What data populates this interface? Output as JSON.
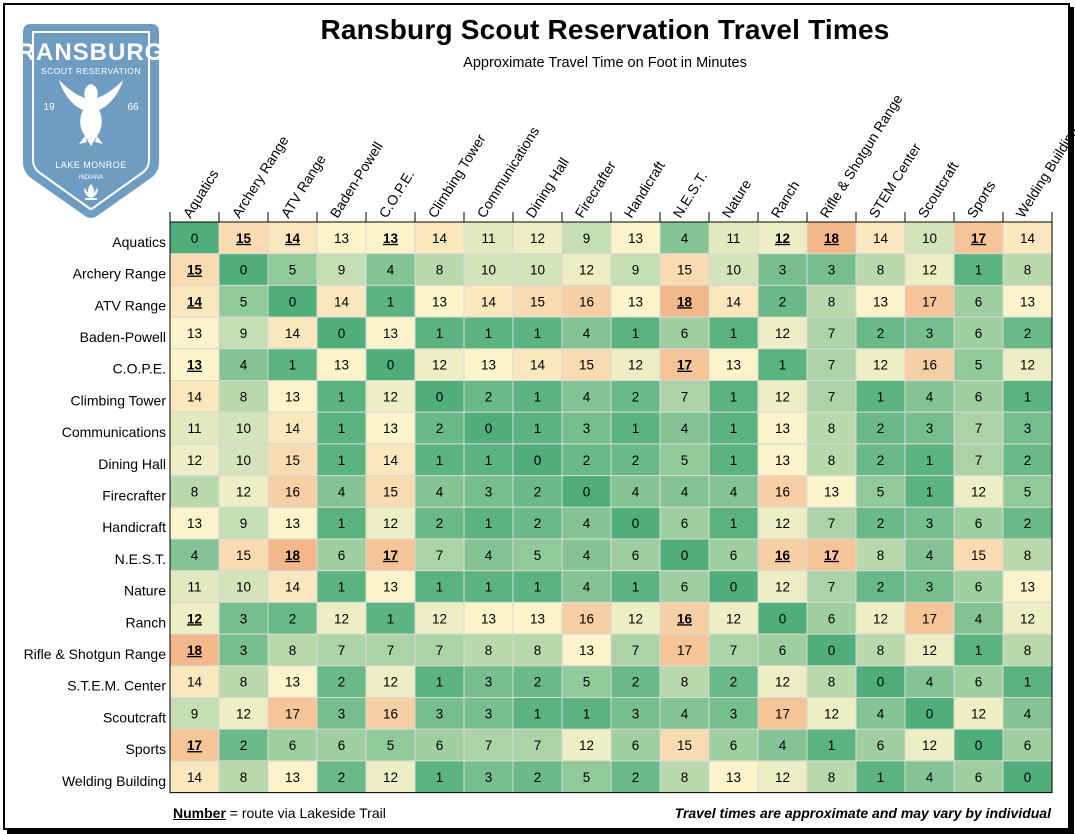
{
  "logo": {
    "name": "RANSBURG",
    "sub": "SCOUT RESERVATION",
    "year_left": "19",
    "year_right": "66",
    "lake": "LAKE MONROE",
    "state": "INDIANA",
    "color": "#6f9dc1"
  },
  "colors": {
    "low": "#4fae7c",
    "mid": "#fbf3cb",
    "high": "#f3b88a",
    "grid": "#d8d8d8",
    "frame": "#000000"
  },
  "footer": {
    "legend_word": "Number",
    "legend_text": " = route via Lakeside Trail",
    "note": "Travel times are approximate and may vary by individual"
  },
  "chart_data": {
    "type": "heatmap",
    "title": "Ransburg Scout Reservation Travel Times",
    "subtitle": "Approximate Travel Time on Foot in Minutes",
    "value_range": [
      0,
      18
    ],
    "rows": [
      "Aquatics",
      "Archery Range",
      "ATV Range",
      "Baden-Powell",
      "C.O.P.E.",
      "Climbing Tower",
      "Communications",
      "Dining Hall",
      "Firecrafter",
      "Handicraft",
      "N.E.S.T.",
      "Nature",
      "Ranch",
      "Rifle & Shotgun Range",
      "S.T.E.M. Center",
      "Scoutcraft",
      "Sports",
      "Welding Building"
    ],
    "columns": [
      "Aquatics",
      "Archery Range",
      "ATV Range",
      "Baden-Powell",
      "C.O.P.E.",
      "Climbing Tower",
      "Communications",
      "Dining Hall",
      "Firecrafter",
      "Handicraft",
      "N.E.S.T.",
      "Nature",
      "Ranch",
      "Rifle & Shotgun Range",
      "STEM Center",
      "Scoutcraft",
      "Sports",
      "Welding Building"
    ],
    "values": [
      [
        0,
        15,
        14,
        13,
        13,
        14,
        11,
        12,
        9,
        13,
        4,
        11,
        12,
        18,
        14,
        10,
        17,
        14
      ],
      [
        15,
        0,
        5,
        9,
        4,
        8,
        10,
        10,
        12,
        9,
        15,
        10,
        3,
        3,
        8,
        12,
        1,
        8
      ],
      [
        14,
        5,
        0,
        14,
        1,
        13,
        14,
        15,
        16,
        13,
        18,
        14,
        2,
        8,
        13,
        17,
        6,
        13
      ],
      [
        13,
        9,
        14,
        0,
        13,
        1,
        1,
        1,
        4,
        1,
        6,
        1,
        12,
        7,
        2,
        3,
        6,
        2
      ],
      [
        13,
        4,
        1,
        13,
        0,
        12,
        13,
        14,
        15,
        12,
        17,
        13,
        1,
        7,
        12,
        16,
        5,
        12
      ],
      [
        14,
        8,
        13,
        1,
        12,
        0,
        2,
        1,
        4,
        2,
        7,
        1,
        12,
        7,
        1,
        4,
        6,
        1
      ],
      [
        11,
        10,
        14,
        1,
        13,
        2,
        0,
        1,
        3,
        1,
        4,
        1,
        13,
        8,
        2,
        3,
        7,
        3
      ],
      [
        12,
        10,
        15,
        1,
        14,
        1,
        1,
        0,
        2,
        2,
        5,
        1,
        13,
        8,
        2,
        1,
        7,
        2
      ],
      [
        8,
        12,
        16,
        4,
        15,
        4,
        3,
        2,
        0,
        4,
        4,
        4,
        16,
        13,
        5,
        1,
        12,
        5
      ],
      [
        13,
        9,
        13,
        1,
        12,
        2,
        1,
        2,
        4,
        0,
        6,
        1,
        12,
        7,
        2,
        3,
        6,
        2
      ],
      [
        4,
        15,
        18,
        6,
        17,
        7,
        4,
        5,
        4,
        6,
        0,
        6,
        16,
        17,
        8,
        4,
        15,
        8
      ],
      [
        11,
        10,
        14,
        1,
        13,
        1,
        1,
        1,
        4,
        1,
        6,
        0,
        12,
        7,
        2,
        3,
        6,
        13
      ],
      [
        12,
        3,
        2,
        12,
        1,
        12,
        13,
        13,
        16,
        12,
        16,
        12,
        0,
        6,
        12,
        17,
        4,
        12
      ],
      [
        18,
        3,
        8,
        7,
        7,
        7,
        8,
        8,
        13,
        7,
        17,
        7,
        6,
        0,
        8,
        12,
        1,
        8
      ],
      [
        14,
        8,
        13,
        2,
        12,
        1,
        3,
        2,
        5,
        2,
        8,
        2,
        12,
        8,
        0,
        4,
        6,
        1
      ],
      [
        9,
        12,
        17,
        3,
        16,
        3,
        3,
        1,
        1,
        3,
        4,
        3,
        17,
        12,
        4,
        0,
        12,
        4
      ],
      [
        17,
        2,
        6,
        6,
        5,
        6,
        7,
        7,
        12,
        6,
        15,
        6,
        4,
        1,
        6,
        12,
        0,
        6
      ],
      [
        14,
        8,
        13,
        2,
        12,
        1,
        3,
        2,
        5,
        2,
        8,
        13,
        12,
        8,
        1,
        4,
        6,
        0
      ]
    ],
    "lakeside_trail_routes": [
      [
        0,
        1
      ],
      [
        0,
        2
      ],
      [
        0,
        4
      ],
      [
        0,
        12
      ],
      [
        0,
        13
      ],
      [
        0,
        16
      ],
      [
        1,
        0
      ],
      [
        2,
        0
      ],
      [
        2,
        10
      ],
      [
        4,
        0
      ],
      [
        4,
        10
      ],
      [
        10,
        2
      ],
      [
        10,
        4
      ],
      [
        10,
        12
      ],
      [
        10,
        13
      ],
      [
        12,
        0
      ],
      [
        12,
        10
      ],
      [
        13,
        0
      ],
      [
        16,
        0
      ]
    ]
  }
}
